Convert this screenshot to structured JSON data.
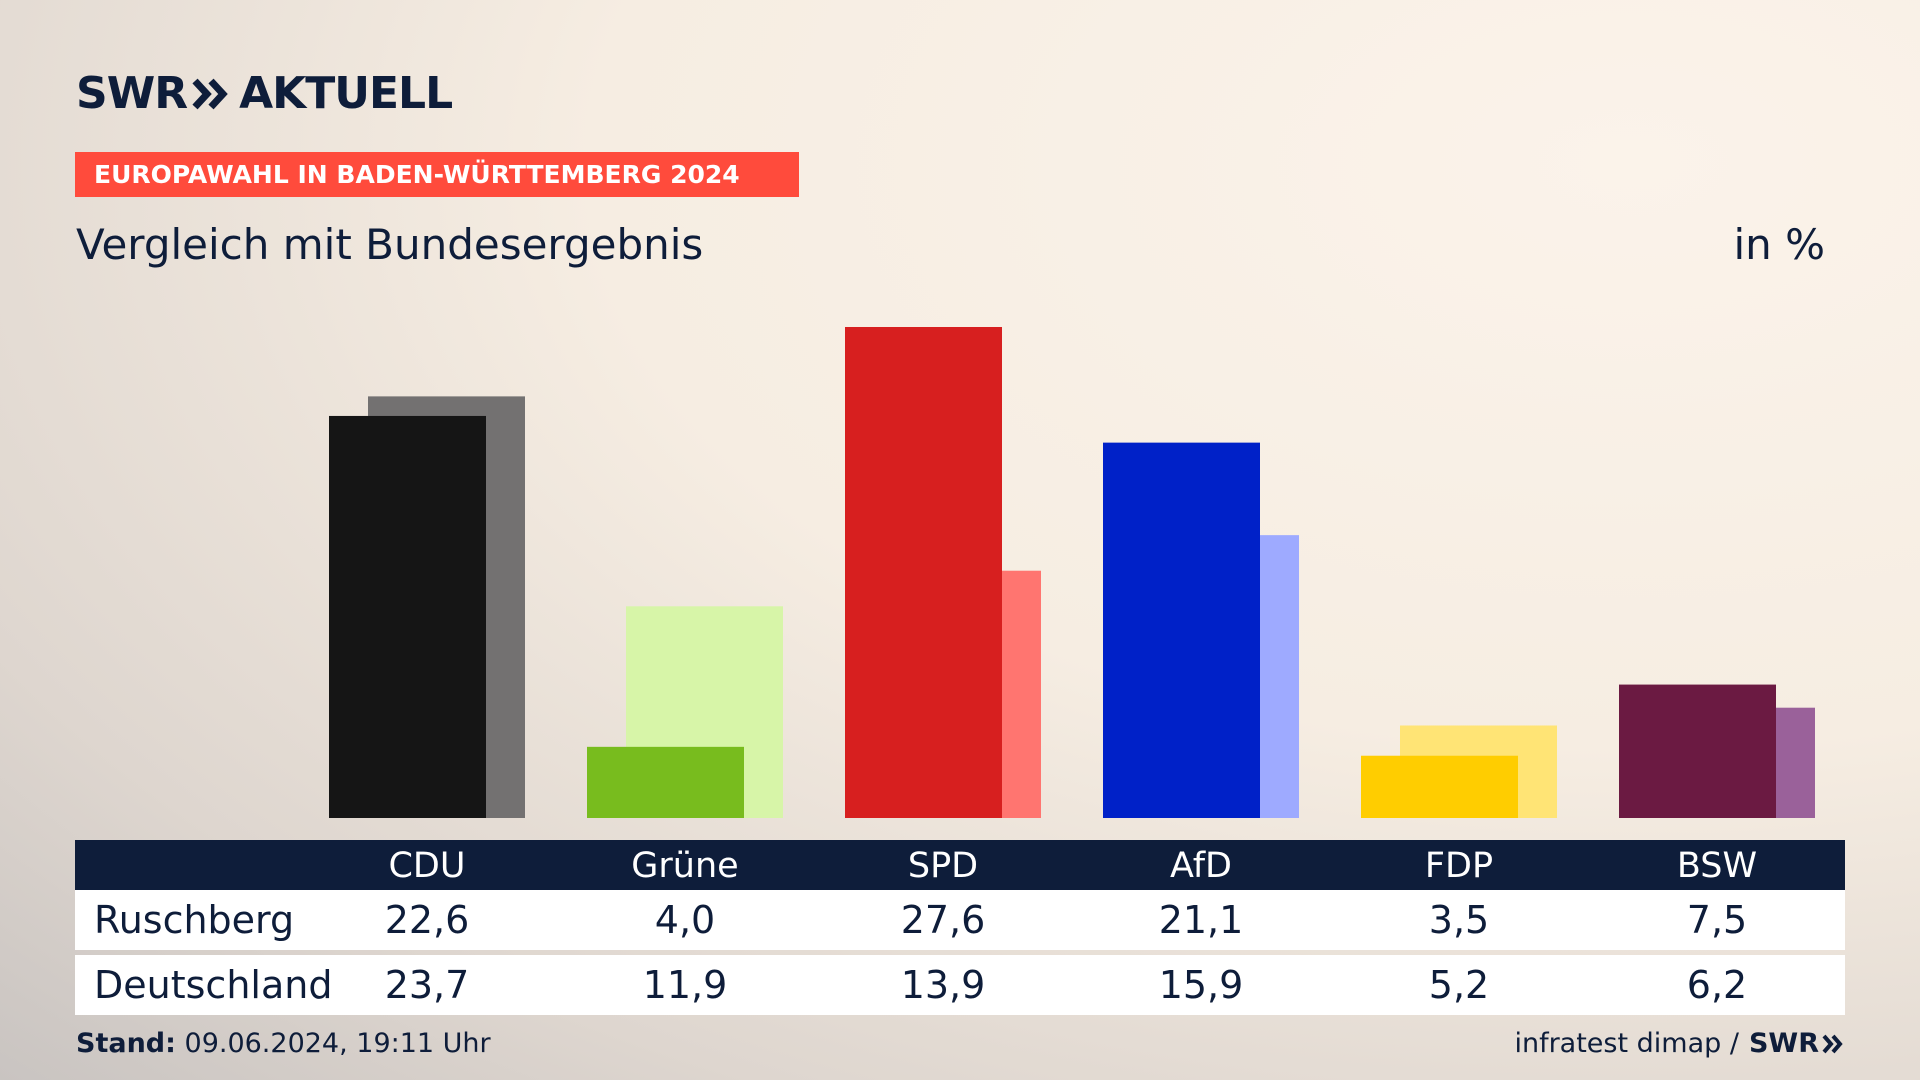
{
  "brand": {
    "logo_text": "SWR",
    "logo_suffix": "AKTUELL",
    "brand_color": "#0e1d3a"
  },
  "kicker": {
    "label": "EUROPAWAHL IN BADEN-WÜRTTEMBERG 2024",
    "color": "#ff4b3c"
  },
  "header": {
    "title": "Vergleich mit Bundesergebnis",
    "unit": "in %"
  },
  "table": {
    "rows": [
      {
        "label": "Ruschberg",
        "values": [
          "22,6",
          "4,0",
          "27,6",
          "21,1",
          "3,5",
          "7,5"
        ]
      },
      {
        "label": "Deutschland",
        "values": [
          "23,7",
          "11,9",
          "13,9",
          "15,9",
          "5,2",
          "6,2"
        ]
      }
    ]
  },
  "footer": {
    "stand_label": "Stand:",
    "stand_value": "09.06.2024, 19:11 Uhr",
    "source": "infratest dimap /",
    "source_logo": "SWR"
  },
  "chart_data": {
    "type": "bar",
    "categories": [
      "CDU",
      "Grüne",
      "SPD",
      "AfD",
      "FDP",
      "BSW"
    ],
    "series": [
      {
        "name": "Ruschberg",
        "values": [
          22.6,
          4.0,
          27.6,
          21.1,
          3.5,
          7.5
        ],
        "colors": [
          "#151515",
          "#78bc1e",
          "#d71f1f",
          "#0021c8",
          "#ffcd00",
          "#6b1a42"
        ]
      },
      {
        "name": "Deutschland",
        "values": [
          23.7,
          11.9,
          13.9,
          15.9,
          5.2,
          6.2
        ],
        "colors": [
          "#737171",
          "#d7f5a8",
          "#ff7570",
          "#9eaaff",
          "#ffe475",
          "#9a619a"
        ]
      }
    ],
    "ylim": [
      0,
      30
    ],
    "grid": false,
    "legend": "table-below"
  }
}
